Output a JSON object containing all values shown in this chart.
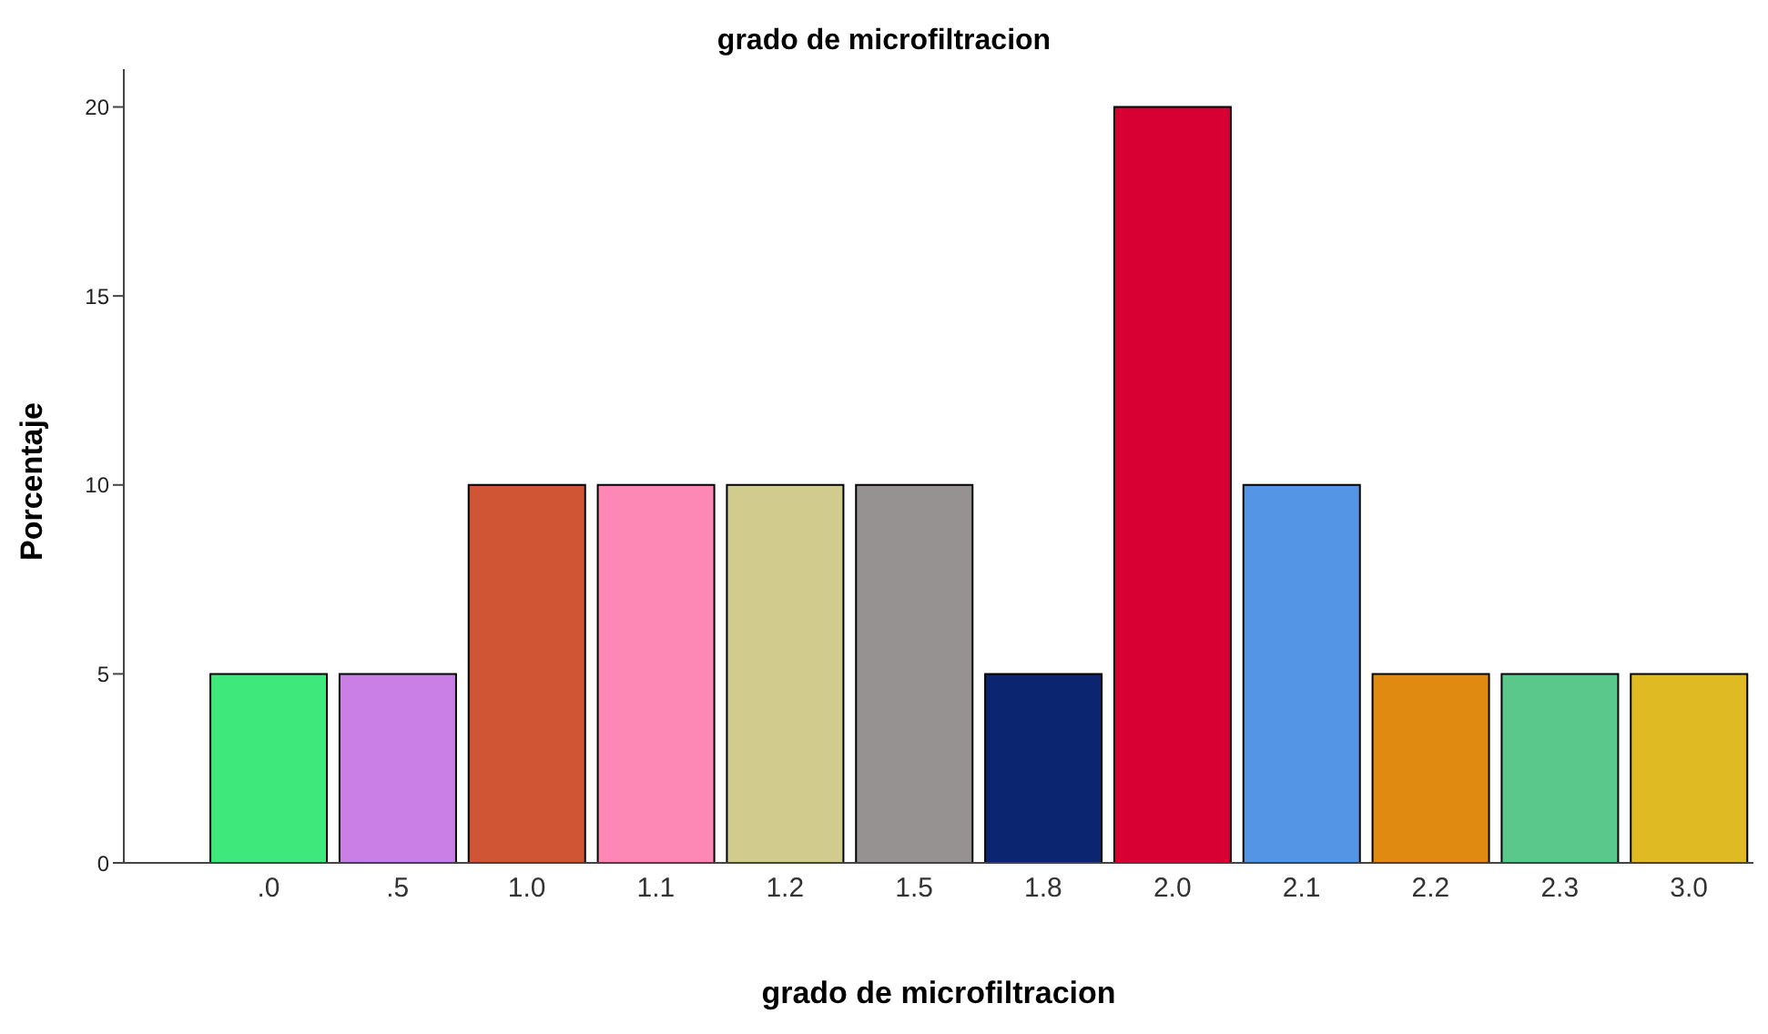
{
  "chart_data": {
    "type": "bar",
    "title": "grado de microfiltracion",
    "xlabel": "grado de microfiltracion",
    "ylabel": "Porcentaje",
    "categories": [
      ".0",
      ".5",
      "1.0",
      "1.1",
      "1.2",
      "1.5",
      "1.8",
      "2.0",
      "2.1",
      "2.2",
      "2.3",
      "3.0"
    ],
    "values": [
      5,
      5,
      10,
      10,
      10,
      10,
      5,
      20,
      10,
      5,
      5,
      5
    ],
    "colors": [
      "#3ee87a",
      "#c97fe5",
      "#d05535",
      "#fd88b5",
      "#d2cb8e",
      "#969291",
      "#0b2570",
      "#d80032",
      "#5496e5",
      "#e08a12",
      "#5ac88a",
      "#e0ba22"
    ],
    "ylim": [
      0,
      21
    ],
    "yticks": [
      0,
      5,
      10,
      15,
      20
    ],
    "grid": false,
    "legend": false
  }
}
